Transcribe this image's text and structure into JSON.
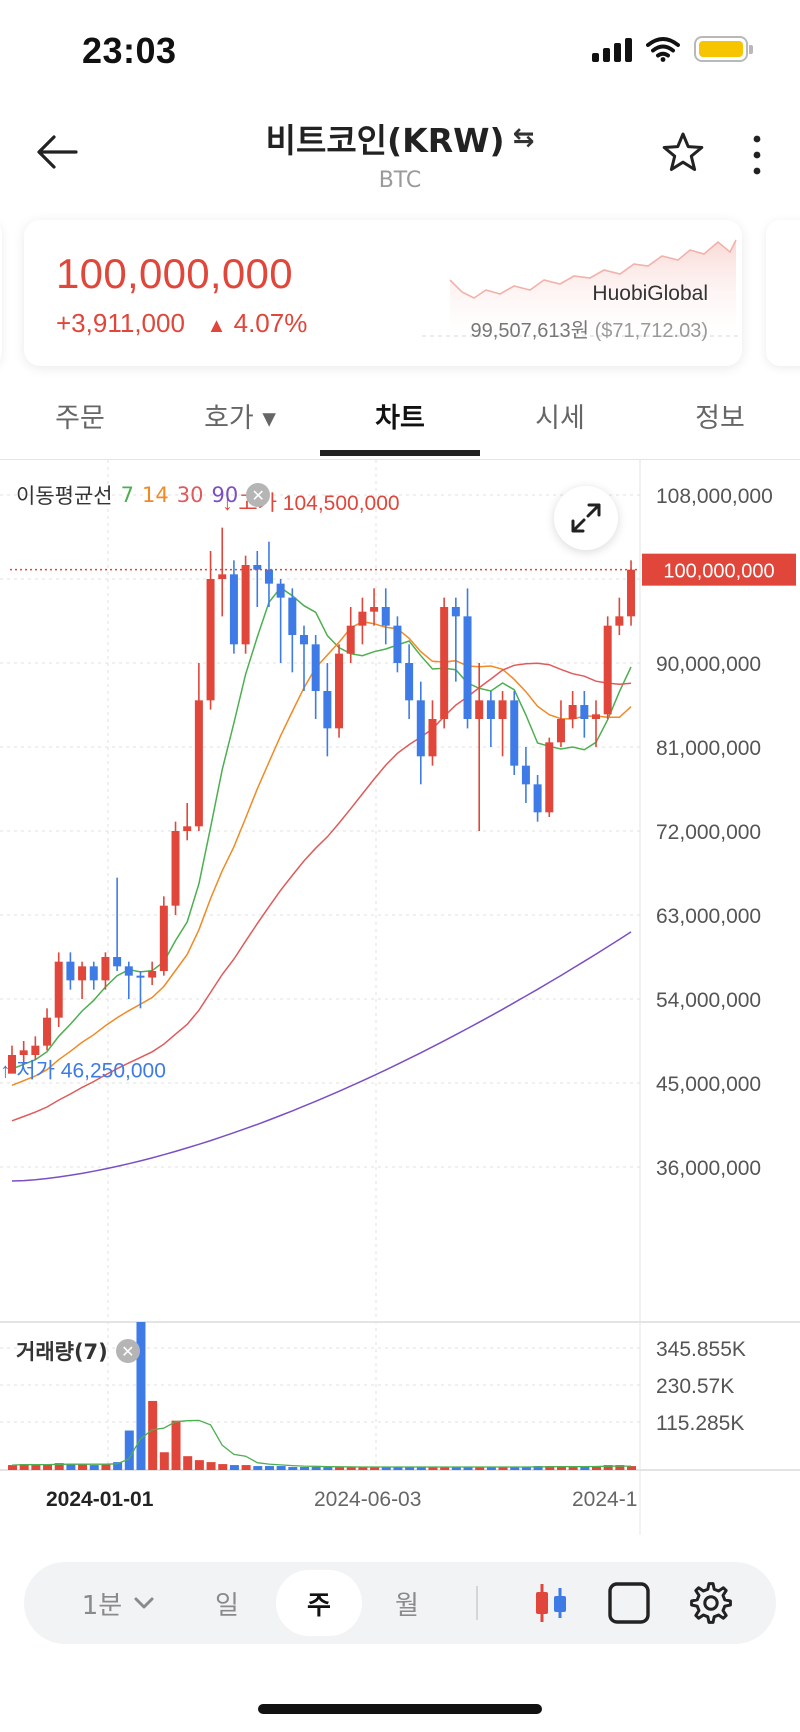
{
  "status_bar": {
    "time": "23:03"
  },
  "header": {
    "title": "비트코인(KRW)",
    "swap_icon": "⇆",
    "subtitle": "BTC"
  },
  "price_card": {
    "price": "100,000,000",
    "change": "+3,911,000",
    "change_arrow": "▲",
    "change_percent": "4.07%",
    "exchange_name": "HuobiGlobal",
    "exchange_price": "99,507,613원",
    "exchange_price_usd": "($71,712.03)"
  },
  "tabs": [
    {
      "label": "주문"
    },
    {
      "label": "호가 ▾"
    },
    {
      "label": "차트"
    },
    {
      "label": "시세"
    },
    {
      "label": "정보"
    }
  ],
  "chart": {
    "ma_legend_label": "이동평균선",
    "ma_periods": [
      "7",
      "14",
      "30",
      "90"
    ],
    "ma_colors": [
      "#4caf50",
      "#f08a24",
      "#e05a5a",
      "#7b4fc4"
    ],
    "high_marker": "고가 104,500,000",
    "low_marker": "저가 46,250,000",
    "current_price_tag": "100,000,000",
    "price_axis": [
      "108,000,000",
      "90,000,000",
      "81,000,000",
      "72,000,000",
      "63,000,000",
      "54,000,000",
      "45,000,000",
      "36,000,000"
    ],
    "volume_label": "거래량(7)",
    "volume_axis": [
      "345.855K",
      "230.57K",
      "115.285K"
    ],
    "date_labels": [
      "2024-01-01",
      "2024-06-03",
      "2024-1"
    ],
    "up_color": "#e0463a",
    "down_color": "#3e7be6"
  },
  "toolbar": {
    "interval": "1분",
    "day": "일",
    "week": "주",
    "month": "월"
  }
}
